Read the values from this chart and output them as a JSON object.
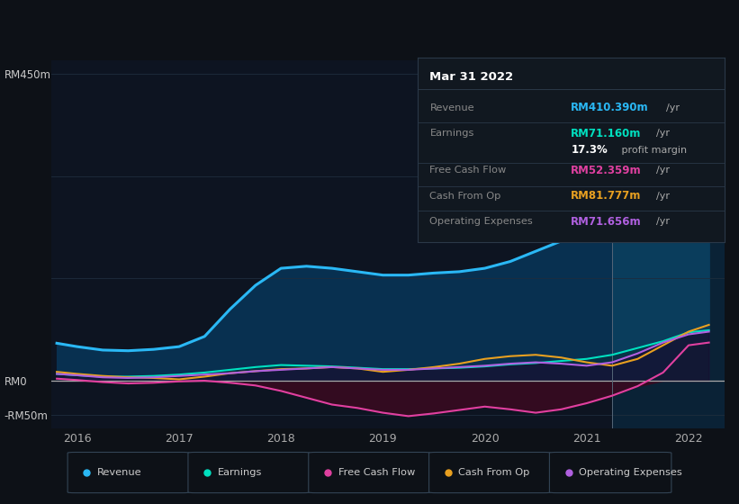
{
  "bg_color": "#0d1117",
  "plot_bg_color": "#0d1421",
  "grid_color": "#1e2d3d",
  "x_years": [
    2015.8,
    2016.0,
    2016.25,
    2016.5,
    2016.75,
    2017.0,
    2017.25,
    2017.5,
    2017.75,
    2018.0,
    2018.25,
    2018.5,
    2018.75,
    2019.0,
    2019.25,
    2019.5,
    2019.75,
    2020.0,
    2020.25,
    2020.5,
    2020.75,
    2021.0,
    2021.25,
    2021.5,
    2021.75,
    2022.0,
    2022.2
  ],
  "revenue": [
    55,
    50,
    45,
    44,
    46,
    50,
    65,
    105,
    140,
    165,
    168,
    165,
    160,
    155,
    155,
    158,
    160,
    165,
    175,
    190,
    205,
    218,
    250,
    295,
    350,
    410,
    425
  ],
  "earnings": [
    10,
    8,
    6,
    6,
    7,
    9,
    12,
    16,
    20,
    23,
    22,
    21,
    19,
    17,
    17,
    18,
    19,
    21,
    24,
    26,
    29,
    32,
    38,
    48,
    58,
    71,
    74
  ],
  "free_cash_flow": [
    3,
    1,
    -2,
    -4,
    -3,
    -1,
    0,
    -3,
    -7,
    -15,
    -25,
    -35,
    -40,
    -47,
    -52,
    -48,
    -43,
    -38,
    -42,
    -47,
    -42,
    -33,
    -22,
    -8,
    12,
    52,
    56
  ],
  "cash_from_op": [
    13,
    10,
    7,
    5,
    4,
    2,
    6,
    11,
    14,
    17,
    18,
    20,
    18,
    13,
    16,
    20,
    25,
    32,
    36,
    38,
    34,
    27,
    22,
    32,
    52,
    72,
    82
  ],
  "operating_expenses": [
    10,
    8,
    5,
    4,
    5,
    7,
    9,
    11,
    14,
    16,
    18,
    20,
    18,
    16,
    16,
    18,
    20,
    22,
    25,
    27,
    25,
    22,
    27,
    40,
    56,
    68,
    72
  ],
  "ylim": [
    -70,
    470
  ],
  "xlim": [
    2015.75,
    2022.35
  ],
  "ytick_positions": [
    -50,
    0,
    450
  ],
  "ytick_labels": [
    "-RM50m",
    "RM0",
    "RM450m"
  ],
  "xtick_positions": [
    2016,
    2017,
    2018,
    2019,
    2020,
    2021,
    2022
  ],
  "xtick_labels": [
    "2016",
    "2017",
    "2018",
    "2019",
    "2020",
    "2021",
    "2022"
  ],
  "highlight_x_start": 2021.25,
  "revenue_color": "#2ab8f5",
  "earnings_color": "#00e0c0",
  "fcf_color": "#e040a0",
  "cfop_color": "#e8a020",
  "opex_color": "#b060e0",
  "revenue_fill": "#0a2a42",
  "highlight_fill": "#0d2840",
  "infobox": {
    "date": "Mar 31 2022",
    "rows": [
      {
        "label": "Revenue",
        "value": "RM410.390m",
        "unit": "/yr",
        "vcolor": "#2ab8f5"
      },
      {
        "label": "Earnings",
        "value": "RM71.160m",
        "unit": "/yr",
        "vcolor": "#00e0c0"
      },
      {
        "label": "",
        "value": "17.3%",
        "unit": " profit margin",
        "vcolor": "#ffffff"
      },
      {
        "label": "Free Cash Flow",
        "value": "RM52.359m",
        "unit": "/yr",
        "vcolor": "#e040a0"
      },
      {
        "label": "Cash From Op",
        "value": "RM81.777m",
        "unit": "/yr",
        "vcolor": "#e8a020"
      },
      {
        "label": "Operating Expenses",
        "value": "RM71.656m",
        "unit": "/yr",
        "vcolor": "#b060e0"
      }
    ]
  },
  "legend_items": [
    {
      "label": "Revenue",
      "color": "#2ab8f5"
    },
    {
      "label": "Earnings",
      "color": "#00e0c0"
    },
    {
      "label": "Free Cash Flow",
      "color": "#e040a0"
    },
    {
      "label": "Cash From Op",
      "color": "#e8a020"
    },
    {
      "label": "Operating Expenses",
      "color": "#b060e0"
    }
  ]
}
